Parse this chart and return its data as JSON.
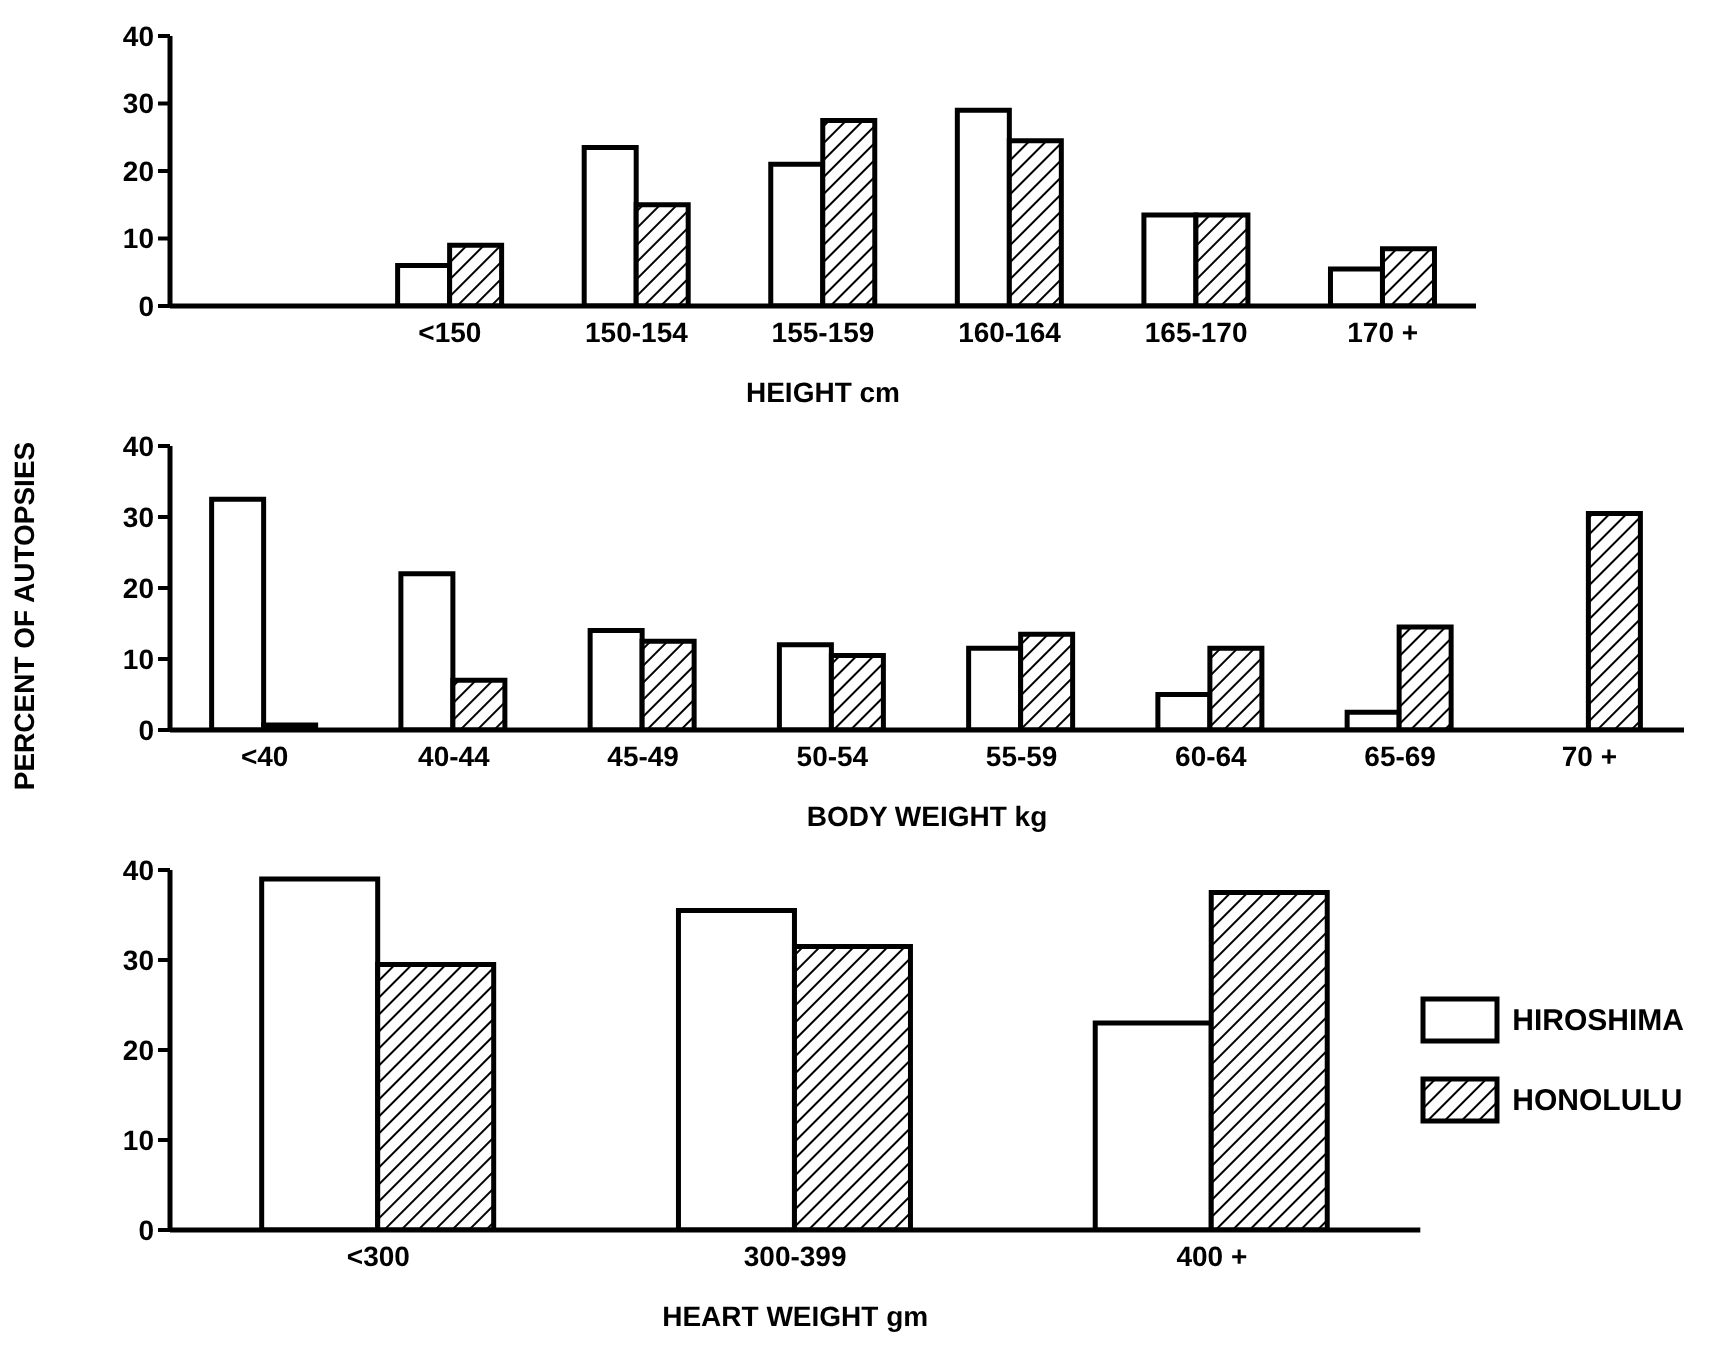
{
  "chart_data": [
    {
      "type": "bar",
      "categories": [
        null,
        "<150",
        "150-154",
        "155-159",
        "160-164",
        "165-170",
        "170 +"
      ],
      "xlabel": "HEIGHT  cm",
      "ylim": [
        0,
        40
      ],
      "yticks": [
        0,
        10,
        20,
        30,
        40
      ],
      "grid": false,
      "legend": false,
      "series": [
        {
          "color": "#ffffff",
          "values": [
            null,
            6,
            23.5,
            21,
            29,
            13.5,
            5.5
          ]
        },
        {
          "color": "#000000",
          "values": [
            null,
            9,
            15,
            27.5,
            24.5,
            13.5,
            8.5
          ]
        }
      ]
    },
    {
      "type": "bar",
      "categories": [
        "<40",
        "40-44",
        "45-49",
        "50-54",
        "55-59",
        "60-64",
        "65-69",
        "70 +"
      ],
      "xlabel": "BODY WEIGHT  kg",
      "ylabel": "PERCENT OF AUTOPSIES",
      "ylim": [
        0,
        40
      ],
      "yticks": [
        0,
        10,
        20,
        30,
        40
      ],
      "grid": false,
      "legend": false,
      "series": [
        {
          "color": "#ffffff",
          "values": [
            32.5,
            22,
            14,
            12,
            11.5,
            5,
            2.5,
            0
          ]
        },
        {
          "color": "#000000",
          "values": [
            0.7,
            7,
            12.5,
            10.5,
            13.5,
            11.5,
            14.5,
            30.5
          ]
        }
      ]
    },
    {
      "type": "bar",
      "categories": [
        "<300",
        "300-399",
        "400 +"
      ],
      "xlabel": "HEART WEIGHT  gm",
      "ylim": [
        0,
        40
      ],
      "yticks": [
        0,
        10,
        20,
        30,
        40
      ],
      "grid": false,
      "legend": "right",
      "series": [
        {
          "name": "HIROSHIMA",
          "color": "#ffffff",
          "values": [
            39,
            35.5,
            23
          ]
        },
        {
          "name": "HONOLULU",
          "color": "#000000",
          "values": [
            29.5,
            31.5,
            37.5
          ]
        }
      ]
    }
  ]
}
